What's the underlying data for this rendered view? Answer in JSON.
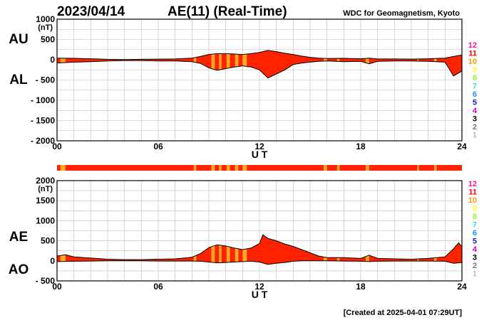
{
  "header": {
    "date": "2023/04/14",
    "title": "AE(11) (Real-Time)",
    "source": "WDC for Geomagnetism, Kyoto"
  },
  "footer": {
    "created": "[Created at 2025-04-01 07:29UT]"
  },
  "station_count_legend": {
    "labels": [
      "12",
      "11",
      "10",
      "9",
      "8",
      "7",
      "6",
      "5",
      "4",
      "3",
      "2",
      "1"
    ],
    "colors": [
      "#ff1493",
      "#ff0000",
      "#ff9900",
      "#ffff33",
      "#99ee33",
      "#33dddd",
      "#1e90ff",
      "#1a1acc",
      "#cc00cc",
      "#000000",
      "#777777",
      "#bbbbbb"
    ]
  },
  "colors": {
    "fill": "#ff2200",
    "highlight": "#ffaa22",
    "grid": "#bbbbbb"
  },
  "chart_data": [
    {
      "type": "area",
      "series_labels": [
        "AU",
        "AL"
      ],
      "ylabel": "(nT)",
      "xlabel": "U T",
      "xlim": [
        0,
        24
      ],
      "ylim": [
        -2000,
        1000
      ],
      "xticks": [
        0,
        6,
        12,
        18,
        24
      ],
      "xtick_labels": [
        "00",
        "06",
        "12",
        "18",
        "24"
      ],
      "yticks": [
        1000,
        500,
        0,
        -500,
        -1000,
        -1500,
        -2000
      ],
      "ytick_labels": [
        "1000",
        "500",
        "0",
        "- 500",
        "- 1000",
        "- 1500",
        "- 2000"
      ],
      "grid": true,
      "upper_x": [
        0,
        1,
        2,
        3,
        4,
        5,
        6,
        7,
        8,
        8.5,
        9,
        9.5,
        10,
        10.5,
        11,
        11.5,
        12,
        12.5,
        13,
        13.5,
        14,
        14.5,
        15,
        15.5,
        16,
        17,
        18,
        18.5,
        19,
        20,
        21,
        22,
        23,
        23.5,
        24
      ],
      "upper_y": [
        40,
        35,
        25,
        10,
        5,
        10,
        15,
        20,
        40,
        80,
        130,
        150,
        150,
        140,
        130,
        150,
        180,
        230,
        200,
        160,
        130,
        90,
        60,
        40,
        30,
        35,
        25,
        40,
        20,
        20,
        15,
        25,
        40,
        80,
        120
      ],
      "lower_x": [
        0,
        1,
        2,
        3,
        4,
        5,
        6,
        7,
        8,
        8.5,
        9,
        9.5,
        10,
        10.5,
        11,
        11.5,
        12,
        12.5,
        13,
        13.5,
        14,
        14.5,
        15,
        15.5,
        16,
        17,
        18,
        18.5,
        19,
        20,
        21,
        22,
        23,
        23.5,
        24
      ],
      "lower_y": [
        -80,
        -60,
        -50,
        -30,
        -20,
        -20,
        -30,
        -30,
        -50,
        -90,
        -200,
        -260,
        -220,
        -180,
        -150,
        -180,
        -250,
        -450,
        -350,
        -250,
        -120,
        -80,
        -60,
        -40,
        -30,
        -50,
        -40,
        -100,
        -40,
        -30,
        -30,
        -40,
        -60,
        -400,
        -280
      ],
      "station_highlight_intervals": [
        [
          0.2,
          0.5
        ],
        [
          8.1,
          8.25
        ],
        [
          9.15,
          9.35
        ],
        [
          9.6,
          9.75
        ],
        [
          10.05,
          10.25
        ],
        [
          10.55,
          10.75
        ],
        [
          11,
          11.25
        ],
        [
          15.8,
          16.0
        ],
        [
          16.6,
          16.75
        ],
        [
          18.3,
          18.5
        ],
        [
          21.35,
          21.45
        ],
        [
          22.35,
          22.5
        ]
      ]
    },
    {
      "type": "area",
      "series_labels": [
        "AE",
        "AO"
      ],
      "ylabel": "(nT)",
      "xlabel": "U T",
      "xlim": [
        0,
        24
      ],
      "ylim": [
        -500,
        2000
      ],
      "xticks": [
        0,
        6,
        12,
        18,
        24
      ],
      "xtick_labels": [
        "00",
        "06",
        "12",
        "18",
        "24"
      ],
      "yticks": [
        2000,
        1500,
        1000,
        500,
        0,
        -500
      ],
      "ytick_labels": [
        "2000",
        "1500",
        "1000",
        "500",
        "0",
        "- 500"
      ],
      "grid": true,
      "upper_x": [
        0,
        0.5,
        1,
        2,
        3,
        4,
        5,
        6,
        7,
        8,
        8.5,
        9,
        9.5,
        10,
        10.5,
        11,
        11.5,
        12,
        12.2,
        12.5,
        13,
        13.5,
        14,
        14.5,
        15,
        15.5,
        16,
        17,
        18,
        18.5,
        19,
        20,
        21,
        22,
        23,
        23.5,
        23.8,
        24
      ],
      "upper_y": [
        120,
        150,
        100,
        70,
        40,
        30,
        30,
        40,
        50,
        90,
        180,
        330,
        400,
        370,
        320,
        280,
        320,
        430,
        650,
        560,
        500,
        420,
        360,
        280,
        200,
        120,
        80,
        80,
        60,
        140,
        60,
        50,
        40,
        60,
        100,
        300,
        450,
        350
      ],
      "lower_x": [
        0,
        1,
        2,
        3,
        4,
        5,
        6,
        7,
        8,
        8.5,
        9,
        9.5,
        10,
        10.5,
        11,
        11.5,
        12,
        12.5,
        13,
        13.5,
        14,
        14.5,
        15,
        15.5,
        16,
        17,
        18,
        18.5,
        19,
        20,
        21,
        22,
        23,
        23.5,
        24
      ],
      "lower_y": [
        -20,
        -10,
        -5,
        0,
        0,
        0,
        -5,
        -5,
        -5,
        -10,
        -30,
        -50,
        -40,
        -30,
        -20,
        -10,
        -30,
        -90,
        -60,
        -40,
        -10,
        0,
        0,
        0,
        0,
        -5,
        -10,
        -20,
        -10,
        -5,
        -5,
        -5,
        -10,
        -60,
        -40
      ],
      "station_highlight_intervals": [
        [
          0.2,
          0.5
        ],
        [
          8.1,
          8.25
        ],
        [
          9.15,
          9.35
        ],
        [
          9.6,
          9.75
        ],
        [
          10.05,
          10.25
        ],
        [
          10.55,
          10.75
        ],
        [
          11,
          11.25
        ],
        [
          15.8,
          16.0
        ],
        [
          16.6,
          16.75
        ],
        [
          18.3,
          18.5
        ],
        [
          21.35,
          21.45
        ],
        [
          22.35,
          22.5
        ]
      ]
    }
  ]
}
